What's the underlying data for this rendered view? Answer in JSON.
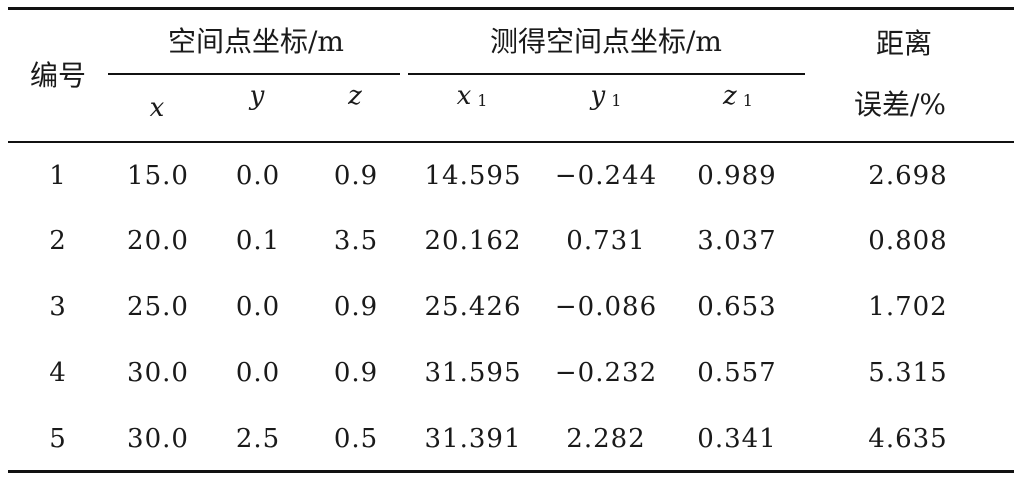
{
  "table": {
    "headers": {
      "id": "编号",
      "group1": "空间点坐标/m",
      "group2": "测得空间点坐标/m",
      "error_line1": "距离",
      "error_line2": "误差/%",
      "x": "x",
      "y": "y",
      "z": "z",
      "x1": "x",
      "y1": "y",
      "z1": "z",
      "sub": "1"
    },
    "rows": [
      {
        "id": "1",
        "x": "15.0",
        "y": "0.0",
        "z": "0.9",
        "x1": "14.595",
        "y1": "−0.244",
        "z1": "0.989",
        "error": "2.698"
      },
      {
        "id": "2",
        "x": "20.0",
        "y": "0.1",
        "z": "3.5",
        "x1": "20.162",
        "y1": "0.731",
        "z1": "3.037",
        "error": "0.808"
      },
      {
        "id": "3",
        "x": "25.0",
        "y": "0.0",
        "z": "0.9",
        "x1": "25.426",
        "y1": "−0.086",
        "z1": "0.653",
        "error": "1.702"
      },
      {
        "id": "4",
        "x": "30.0",
        "y": "0.0",
        "z": "0.9",
        "x1": "31.595",
        "y1": "−0.232",
        "z1": "0.557",
        "error": "5.315"
      },
      {
        "id": "5",
        "x": "30.0",
        "y": "2.5",
        "z": "0.5",
        "x1": "31.391",
        "y1": "2.282",
        "z1": "0.341",
        "error": "4.635"
      }
    ]
  }
}
